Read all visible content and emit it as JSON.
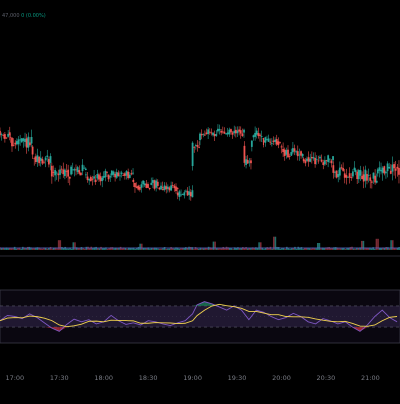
{
  "legend": {
    "value": "47,000",
    "change": "0 (0.00%)"
  },
  "colors": {
    "background": "#000000",
    "up": "#26a69a",
    "down": "#ef5350",
    "volume_up": "#1f6f6a",
    "volume_down": "#7a2a33",
    "volume_line": "#5b6bd6",
    "pane_border": "#3a3a48",
    "rsi_band_fill": "#2a2040",
    "rsi_band_line": "#5a5a6a",
    "rsi_line": "#7e57c2",
    "rsi_ma": "#f2d34f",
    "axis_text": "#7a7d86",
    "overbought_fill": "#1b7f5a",
    "oversold_fill": "#b02a3a"
  },
  "chart_data": [
    {
      "type": "candlestick",
      "x_axis": {
        "labels": [
          "17:00",
          "17:30",
          "18:00",
          "18:30",
          "19:00",
          "19:30",
          "20:00",
          "20:30",
          "21:00"
        ],
        "range": [
          "16:50",
          "21:20"
        ]
      },
      "ylim": [
        0,
        100
      ],
      "grid": false,
      "segments": [
        {
          "from": "16:50",
          "to": "16:57",
          "level": 78,
          "noise": 8
        },
        {
          "from": "16:57",
          "to": "17:12",
          "level": 72,
          "noise": 10
        },
        {
          "from": "17:12",
          "to": "17:25",
          "level": 58,
          "noise": 10
        },
        {
          "from": "17:25",
          "to": "17:38",
          "level": 48,
          "noise": 10
        },
        {
          "from": "17:38",
          "to": "17:48",
          "level": 50,
          "noise": 9
        },
        {
          "from": "17:48",
          "to": "18:00",
          "level": 44,
          "noise": 9
        },
        {
          "from": "18:00",
          "to": "18:20",
          "level": 46,
          "noise": 7
        },
        {
          "from": "18:20",
          "to": "18:40",
          "level": 38,
          "noise": 8
        },
        {
          "from": "18:40",
          "to": "18:50",
          "level": 36,
          "noise": 6
        },
        {
          "from": "18:50",
          "to": "19:00",
          "level": 30,
          "noise": 8
        },
        {
          "from": "19:00",
          "to": "19:05",
          "level": 68,
          "noise": 10
        },
        {
          "from": "19:05",
          "to": "19:35",
          "level": 80,
          "noise": 7
        },
        {
          "from": "19:35",
          "to": "19:40",
          "level": 55,
          "noise": 9
        },
        {
          "from": "19:40",
          "to": "19:48",
          "level": 78,
          "noise": 9
        },
        {
          "from": "19:48",
          "to": "20:00",
          "level": 73,
          "noise": 7
        },
        {
          "from": "20:00",
          "to": "20:15",
          "level": 64,
          "noise": 9
        },
        {
          "from": "20:15",
          "to": "20:35",
          "level": 58,
          "noise": 8
        },
        {
          "from": "20:35",
          "to": "20:50",
          "level": 48,
          "noise": 9
        },
        {
          "from": "20:50",
          "to": "21:05",
          "level": 45,
          "noise": 11
        },
        {
          "from": "21:05",
          "to": "21:20",
          "level": 50,
          "noise": 12
        }
      ]
    },
    {
      "type": "bar",
      "name": "volume",
      "x_range": [
        "16:50",
        "21:20"
      ],
      "ylim": [
        0,
        100
      ],
      "typical_value": 18,
      "spikes": [
        {
          "x": "17:30",
          "value": 70
        },
        {
          "x": "17:40",
          "value": 55
        },
        {
          "x": "18:25",
          "value": 45
        },
        {
          "x": "19:15",
          "value": 60
        },
        {
          "x": "19:45",
          "value": 55
        },
        {
          "x": "19:55",
          "value": 95
        },
        {
          "x": "20:25",
          "value": 50
        },
        {
          "x": "20:55",
          "value": 65
        },
        {
          "x": "21:05",
          "value": 80
        },
        {
          "x": "21:15",
          "value": 70
        }
      ]
    },
    {
      "type": "line",
      "name": "oscillator",
      "x_range": [
        "16:50",
        "21:20"
      ],
      "ylim": [
        0,
        100
      ],
      "bands": [
        30,
        70
      ],
      "points": [
        [
          "16:50",
          42
        ],
        [
          "16:55",
          52
        ],
        [
          "17:00",
          50
        ],
        [
          "17:05",
          46
        ],
        [
          "17:10",
          55
        ],
        [
          "17:15",
          48
        ],
        [
          "17:20",
          38
        ],
        [
          "17:25",
          28
        ],
        [
          "17:30",
          22
        ],
        [
          "17:35",
          35
        ],
        [
          "17:40",
          45
        ],
        [
          "17:45",
          40
        ],
        [
          "17:50",
          44
        ],
        [
          "17:55",
          36
        ],
        [
          "18:00",
          40
        ],
        [
          "18:05",
          52
        ],
        [
          "18:10",
          42
        ],
        [
          "18:15",
          35
        ],
        [
          "18:20",
          38
        ],
        [
          "18:25",
          34
        ],
        [
          "18:30",
          42
        ],
        [
          "18:35",
          40
        ],
        [
          "18:40",
          36
        ],
        [
          "18:45",
          33
        ],
        [
          "18:50",
          38
        ],
        [
          "18:55",
          42
        ],
        [
          "19:00",
          55
        ],
        [
          "19:03",
          72
        ],
        [
          "19:08",
          78
        ],
        [
          "19:13",
          74
        ],
        [
          "19:18",
          68
        ],
        [
          "19:23",
          62
        ],
        [
          "19:28",
          70
        ],
        [
          "19:33",
          62
        ],
        [
          "19:38",
          44
        ],
        [
          "19:43",
          62
        ],
        [
          "19:48",
          58
        ],
        [
          "19:53",
          50
        ],
        [
          "19:58",
          44
        ],
        [
          "20:03",
          48
        ],
        [
          "20:08",
          56
        ],
        [
          "20:13",
          50
        ],
        [
          "20:18",
          40
        ],
        [
          "20:23",
          36
        ],
        [
          "20:28",
          46
        ],
        [
          "20:33",
          42
        ],
        [
          "20:38",
          36
        ],
        [
          "20:43",
          40
        ],
        [
          "20:48",
          30
        ],
        [
          "20:53",
          22
        ],
        [
          "20:58",
          34
        ],
        [
          "21:03",
          50
        ],
        [
          "21:08",
          62
        ],
        [
          "21:13",
          48
        ],
        [
          "21:18",
          40
        ]
      ],
      "ma_window": 4
    }
  ]
}
